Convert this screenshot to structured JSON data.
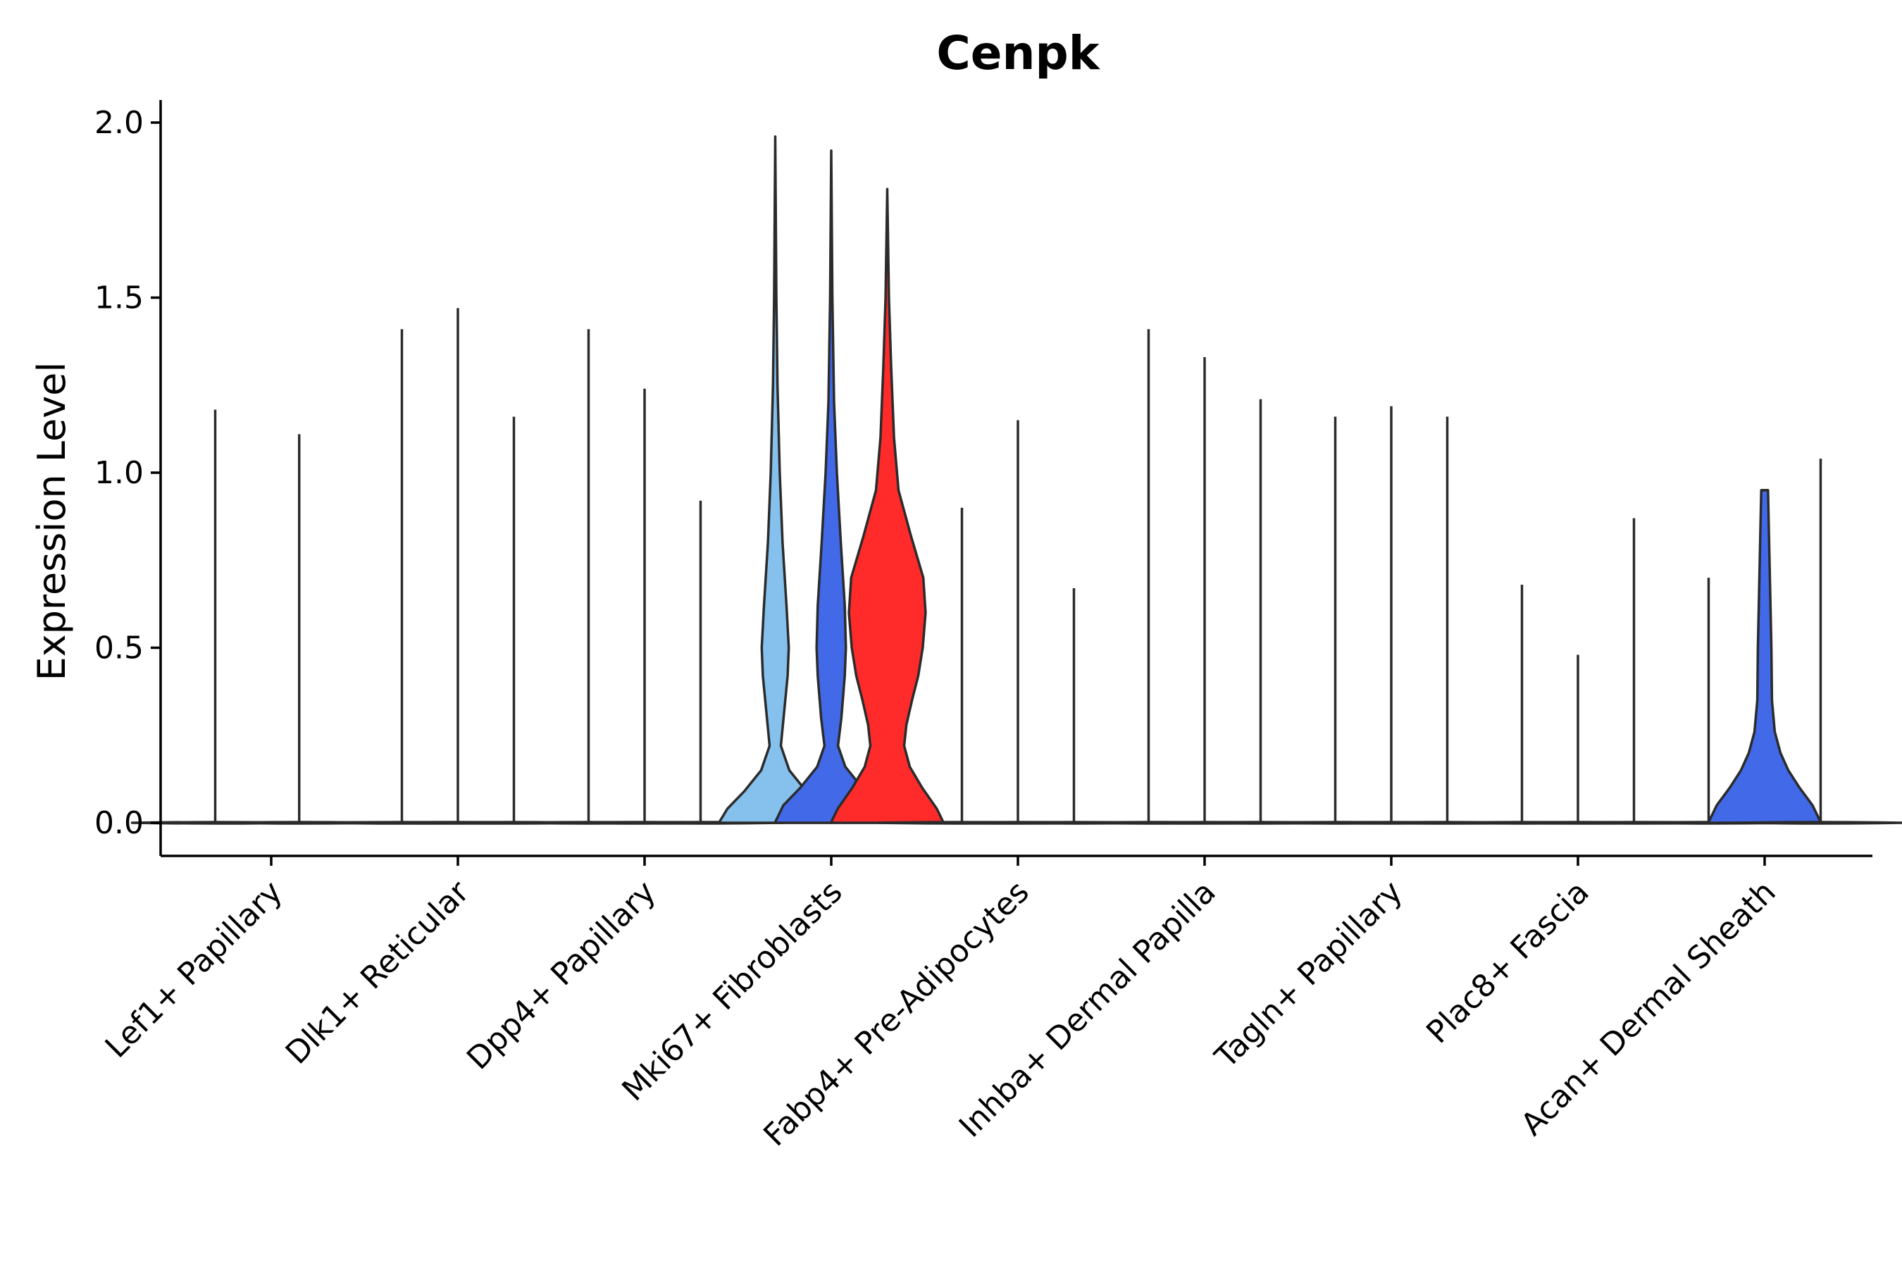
{
  "chart_data": {
    "type": "violin",
    "title": "Cenpk",
    "xlabel": "",
    "ylabel": "Expression Level",
    "ylim": [
      -0.1,
      2.07
    ],
    "yticks": [
      "0.0",
      "0.5",
      "1.0",
      "1.5",
      "2.0"
    ],
    "categories": [
      "Lef1+ Papillary",
      "Dlk1+ Reticular",
      "Dpp4+ Papillary",
      "Mki67+ Fibroblasts",
      "Fabp4+ Pre-Adipocytes",
      "Inhba+ Dermal Papilla",
      "Tagln+ Papillary",
      "Plac8+ Fascia",
      "Acan+ Dermal Sheath"
    ],
    "groups": [
      {
        "name": "group-1",
        "color": "#85c1ec"
      },
      {
        "name": "group-2",
        "color": "#4169e8"
      },
      {
        "name": "group-3",
        "color": "#ff2a2a"
      }
    ],
    "violins": [
      {
        "category": 0,
        "offset": -0.3,
        "max": 1.18,
        "color": "#85c1ec",
        "shape": "flat"
      },
      {
        "category": 0,
        "offset": 0.15,
        "max": 1.11,
        "color": "#ff2a2a",
        "shape": "flat"
      },
      {
        "category": 1,
        "offset": -0.3,
        "max": 1.41,
        "color": "#85c1ec",
        "shape": "flat"
      },
      {
        "category": 1,
        "offset": 0.0,
        "max": 1.47,
        "color": "#4169e8",
        "shape": "flat"
      },
      {
        "category": 1,
        "offset": 0.3,
        "max": 1.16,
        "color": "#ff2a2a",
        "shape": "flat"
      },
      {
        "category": 2,
        "offset": -0.3,
        "max": 1.41,
        "color": "#85c1ec",
        "shape": "flat"
      },
      {
        "category": 2,
        "offset": 0.0,
        "max": 1.24,
        "color": "#4169e8",
        "shape": "flat"
      },
      {
        "category": 2,
        "offset": 0.3,
        "max": 0.92,
        "color": "#ff2a2a",
        "shape": "flat"
      },
      {
        "category": 3,
        "offset": -0.3,
        "max": 1.96,
        "color": "#85c1ec",
        "shape": "mki67-a"
      },
      {
        "category": 3,
        "offset": 0.0,
        "max": 1.92,
        "color": "#4169e8",
        "shape": "mki67-b"
      },
      {
        "category": 3,
        "offset": 0.3,
        "max": 1.81,
        "color": "#ff2a2a",
        "shape": "mki67-c"
      },
      {
        "category": 4,
        "offset": -0.3,
        "max": 0.9,
        "color": "#85c1ec",
        "shape": "flat"
      },
      {
        "category": 4,
        "offset": 0.0,
        "max": 1.15,
        "color": "#4169e8",
        "shape": "flat"
      },
      {
        "category": 4,
        "offset": 0.3,
        "max": 0.67,
        "color": "#ff2a2a",
        "shape": "flat"
      },
      {
        "category": 5,
        "offset": -0.3,
        "max": 1.41,
        "color": "#85c1ec",
        "shape": "flat"
      },
      {
        "category": 5,
        "offset": 0.0,
        "max": 1.33,
        "color": "#4169e8",
        "shape": "flat"
      },
      {
        "category": 5,
        "offset": 0.3,
        "max": 1.21,
        "color": "#ff2a2a",
        "shape": "flat"
      },
      {
        "category": 6,
        "offset": -0.3,
        "max": 1.16,
        "color": "#85c1ec",
        "shape": "flat"
      },
      {
        "category": 6,
        "offset": 0.0,
        "max": 1.19,
        "color": "#4169e8",
        "shape": "flat"
      },
      {
        "category": 6,
        "offset": 0.3,
        "max": 1.16,
        "color": "#ff2a2a",
        "shape": "flat"
      },
      {
        "category": 7,
        "offset": -0.3,
        "max": 0.68,
        "color": "#85c1ec",
        "shape": "flat"
      },
      {
        "category": 7,
        "offset": 0.0,
        "max": 0.48,
        "color": "#4169e8",
        "shape": "flat"
      },
      {
        "category": 7,
        "offset": 0.3,
        "max": 0.87,
        "color": "#ff2a2a",
        "shape": "flat"
      },
      {
        "category": 8,
        "offset": -0.3,
        "max": 0.7,
        "color": "#85c1ec",
        "shape": "flat"
      },
      {
        "category": 8,
        "offset": 0.0,
        "max": 0.95,
        "color": "#4169e8",
        "shape": "acan-b"
      },
      {
        "category": 8,
        "offset": 0.3,
        "max": 1.04,
        "color": "#ff2a2a",
        "shape": "flat"
      }
    ]
  }
}
